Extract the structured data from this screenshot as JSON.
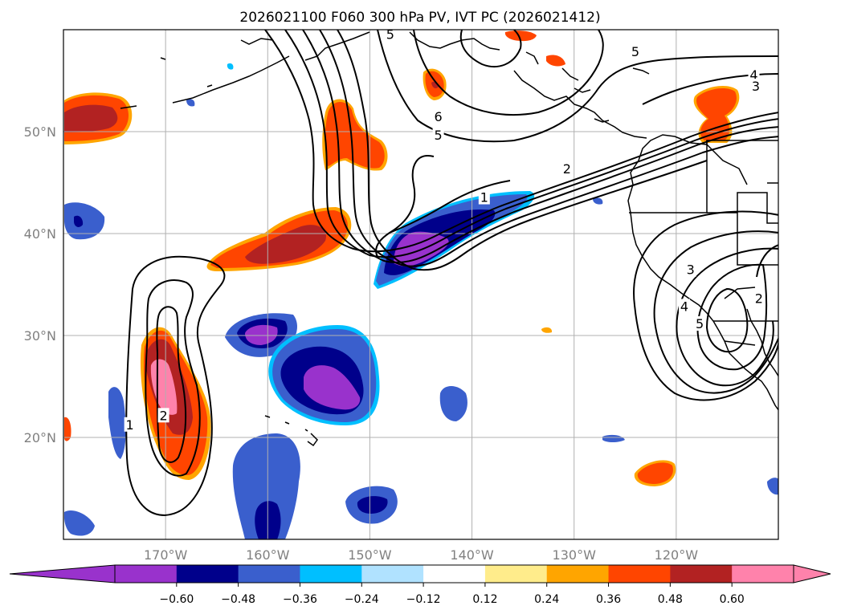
{
  "title": "2026021100 F060 300 hPa PV, IVT PC (2026021412)",
  "map": {
    "projection": "plate-carree",
    "lon_range": [
      -180,
      -110
    ],
    "lat_range": [
      10,
      60
    ],
    "lon_ticks": [
      {
        "lon": -170,
        "label": "170°W"
      },
      {
        "lon": -160,
        "label": "160°W"
      },
      {
        "lon": -150,
        "label": "150°W"
      },
      {
        "lon": -140,
        "label": "140°W"
      },
      {
        "lon": -130,
        "label": "130°W"
      },
      {
        "lon": -120,
        "label": "120°W"
      }
    ],
    "lat_ticks": [
      {
        "lat": 20,
        "label": "20°N"
      },
      {
        "lat": 30,
        "label": "30°N"
      },
      {
        "lat": 40,
        "label": "40°N"
      },
      {
        "lat": 50,
        "label": "50°N"
      }
    ],
    "gridlines": true,
    "coastline_color": "#000000"
  },
  "colorbar": {
    "orientation": "horizontal",
    "extend": "both",
    "levels": [
      -0.72,
      -0.6,
      -0.48,
      -0.36,
      -0.24,
      -0.12,
      0.12,
      0.24,
      0.36,
      0.48,
      0.6,
      0.72
    ],
    "colors": [
      "#9932cc",
      "#00008b",
      "#3a5fcd",
      "#00bfff",
      "#b0e2ff",
      "#ffffff",
      "#ffec8b",
      "#ffa500",
      "#ff4500",
      "#b22222",
      "#ff82ab"
    ],
    "extend_low_color": "#9932cc",
    "extend_high_color": "#ff82ab",
    "tick_labels": [
      "−0.60",
      "−0.48",
      "−0.36",
      "−0.24",
      "−0.12",
      "0.12",
      "0.24",
      "0.36",
      "0.48",
      "0.60"
    ]
  },
  "contour_labels": [
    {
      "text": "5",
      "lon": -148,
      "lat": 59.5
    },
    {
      "text": "5",
      "lon": -124,
      "lat": 57.8
    },
    {
      "text": "6",
      "lon": -143.3,
      "lat": 51.4
    },
    {
      "text": "5",
      "lon": -143.3,
      "lat": 49.6
    },
    {
      "text": "2",
      "lon": -130.7,
      "lat": 46.3
    },
    {
      "text": "1",
      "lon": -138.8,
      "lat": 43.5
    },
    {
      "text": "4",
      "lon": -112.4,
      "lat": 55.5
    },
    {
      "text": "3",
      "lon": -112.2,
      "lat": 54.4
    },
    {
      "text": "3",
      "lon": -118.6,
      "lat": 36.4
    },
    {
      "text": "4",
      "lon": -119.2,
      "lat": 32.8
    },
    {
      "text": "5",
      "lon": -117.7,
      "lat": 31.1
    },
    {
      "text": "2",
      "lon": -111.9,
      "lat": 33.6
    },
    {
      "text": "1",
      "lon": -173.5,
      "lat": 21.2
    },
    {
      "text": "2",
      "lon": -170.2,
      "lat": 22.1
    }
  ]
}
